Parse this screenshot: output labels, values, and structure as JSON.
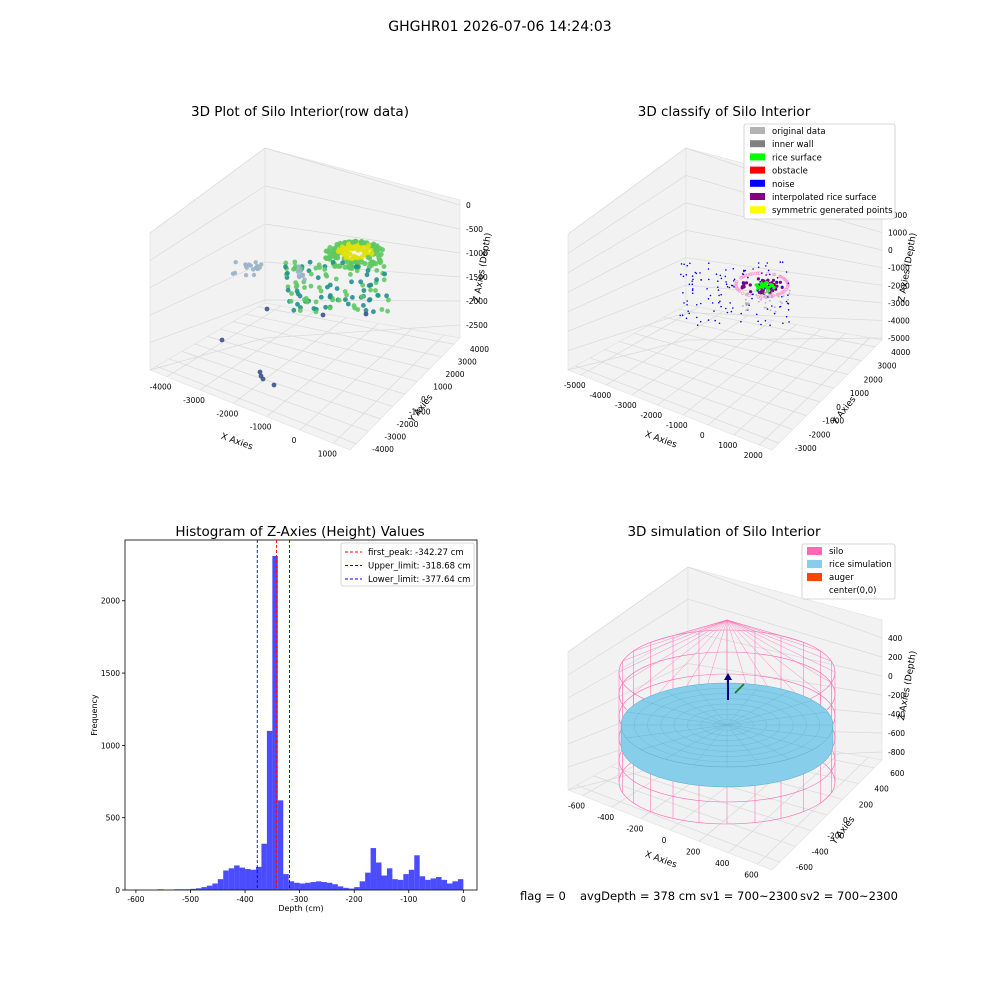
{
  "figure": {
    "suptitle": "GHGHR01 2026-07-06 14:24:03",
    "footer": {
      "flag": "flag = 0",
      "avg": "avgDepth = 378 cm",
      "sv1": "sv1 = 700~2300",
      "sv2": "sv2 = 700~2300"
    }
  },
  "chart_data": [
    {
      "type": "scatter3d",
      "title": "3D Plot of Silo Interior(row data)",
      "xlabel": "X Axies",
      "ylabel": "Y Axies",
      "zlabel": "Z Axies (Depth)",
      "x_ticks": [
        "-4000",
        "-3000",
        "-2000",
        "-1000",
        "0",
        "1000"
      ],
      "y_ticks": [
        "-4000",
        "-3000",
        "-2000",
        "-1000",
        "0",
        "1000",
        "2000",
        "3000",
        "4000"
      ],
      "z_ticks": [
        "0",
        "-500",
        "-1000",
        "-1500",
        "-2000",
        "-2500"
      ],
      "colors": {
        "low": "#3b528b",
        "mid": "#21918c",
        "high": "#5ec962",
        "top": "#e0e00a",
        "pale": "#9ab2c6"
      }
    },
    {
      "type": "scatter3d",
      "title": "3D classify of Silo Interior",
      "xlabel": "X Axies",
      "ylabel": "Y Axies",
      "zlabel": "Z Axies (Depth)",
      "x_ticks": [
        "-5000",
        "-4000",
        "-3000",
        "-2000",
        "-1000",
        "0",
        "1000",
        "2000"
      ],
      "y_ticks": [
        "-3000",
        "-2000",
        "-1000",
        "0",
        "1000",
        "2000",
        "3000",
        "4000"
      ],
      "z_ticks": [
        "2000",
        "1000",
        "0",
        "-1000",
        "-2000",
        "-3000",
        "-4000",
        "-5000"
      ],
      "legend_position": "upper right",
      "legend": [
        {
          "label": "original data",
          "color": "#b3b3b3"
        },
        {
          "label": "inner wall",
          "color": "#808080"
        },
        {
          "label": "rice surface",
          "color": "#00ff00"
        },
        {
          "label": "obstacle",
          "color": "#ff0000"
        },
        {
          "label": "noise",
          "color": "#0000ff"
        },
        {
          "label": "interpolated rice surface",
          "color": "#800080"
        },
        {
          "label": "symmetric generated points",
          "color": "#ffff00"
        }
      ]
    },
    {
      "type": "bar",
      "title": "Histogram of Z-Axies (Height) Values",
      "xlabel": "Depth (cm)",
      "ylabel": "Frequency",
      "xlim": [
        -620,
        25
      ],
      "ylim": [
        0,
        2420
      ],
      "x_ticks": [
        -600,
        -500,
        -400,
        -300,
        -200,
        -100,
        0
      ],
      "y_ticks": [
        0,
        500,
        1000,
        1500,
        2000
      ],
      "bar_color": "#0000ff",
      "bins": [
        [
          -560,
          -550,
          5
        ],
        [
          -530,
          -520,
          5
        ],
        [
          -520,
          -510,
          5
        ],
        [
          -510,
          -500,
          5
        ],
        [
          -500,
          -490,
          8
        ],
        [
          -490,
          -480,
          12
        ],
        [
          -480,
          -470,
          20
        ],
        [
          -470,
          -460,
          30
        ],
        [
          -460,
          -450,
          45
        ],
        [
          -450,
          -440,
          75
        ],
        [
          -440,
          -430,
          135
        ],
        [
          -430,
          -420,
          150
        ],
        [
          -420,
          -410,
          170
        ],
        [
          -410,
          -400,
          155
        ],
        [
          -400,
          -390,
          145
        ],
        [
          -390,
          -380,
          140
        ],
        [
          -380,
          -370,
          160
        ],
        [
          -370,
          -360,
          320
        ],
        [
          -360,
          -350,
          1100
        ],
        [
          -350,
          -340,
          2310
        ],
        [
          -340,
          -330,
          620
        ],
        [
          -330,
          -320,
          110
        ],
        [
          -320,
          -310,
          60
        ],
        [
          -310,
          -300,
          50
        ],
        [
          -300,
          -290,
          45
        ],
        [
          -290,
          -280,
          50
        ],
        [
          -280,
          -270,
          55
        ],
        [
          -270,
          -260,
          60
        ],
        [
          -260,
          -250,
          55
        ],
        [
          -250,
          -240,
          50
        ],
        [
          -240,
          -230,
          40
        ],
        [
          -230,
          -220,
          25
        ],
        [
          -220,
          -210,
          15
        ],
        [
          -210,
          -200,
          10
        ],
        [
          -200,
          -190,
          20
        ],
        [
          -190,
          -180,
          60
        ],
        [
          -180,
          -170,
          120
        ],
        [
          -170,
          -160,
          290
        ],
        [
          -160,
          -150,
          190
        ],
        [
          -150,
          -140,
          100
        ],
        [
          -140,
          -130,
          150
        ],
        [
          -130,
          -120,
          75
        ],
        [
          -120,
          -110,
          70
        ],
        [
          -110,
          -100,
          110
        ],
        [
          -100,
          -90,
          140
        ],
        [
          -90,
          -80,
          240
        ],
        [
          -80,
          -70,
          95
        ],
        [
          -70,
          -60,
          70
        ],
        [
          -60,
          -50,
          80
        ],
        [
          -50,
          -40,
          90
        ],
        [
          -40,
          -30,
          70
        ],
        [
          -30,
          -20,
          45
        ],
        [
          -20,
          -10,
          60
        ],
        [
          -10,
          0,
          75
        ]
      ],
      "vlines": [
        {
          "x": -342.27,
          "color": "#ff0000",
          "label": "first_peak: -342.27 cm"
        },
        {
          "x": -318.68,
          "color": "#0000ff",
          "label": "Upper_limit: -318.68 cm"
        },
        {
          "x": -377.64,
          "color": "#0000ff",
          "label": "Lower_limit: -377.64 cm"
        }
      ],
      "legend_position": "upper right"
    },
    {
      "type": "surface3d",
      "title": "3D simulation of Silo Interior",
      "xlabel": "X Axies",
      "ylabel": "Y Axies",
      "zlabel": "Z Axies (Depth)",
      "x_ticks": [
        "-600",
        "-400",
        "-200",
        "0",
        "200",
        "400",
        "600"
      ],
      "y_ticks": [
        "-600",
        "-400",
        "-200",
        "0",
        "200",
        "400",
        "600"
      ],
      "z_ticks": [
        "400",
        "200",
        "0",
        "-200",
        "-400",
        "-600",
        "-800"
      ],
      "legend_position": "upper right",
      "legend": [
        {
          "label": "silo",
          "color": "#ff69b4"
        },
        {
          "label": "rice simulation",
          "color": "#87ceeb"
        },
        {
          "label": "auger",
          "color": "#ff4500"
        },
        {
          "label": "center(0,0)",
          "color": ""
        }
      ]
    }
  ]
}
